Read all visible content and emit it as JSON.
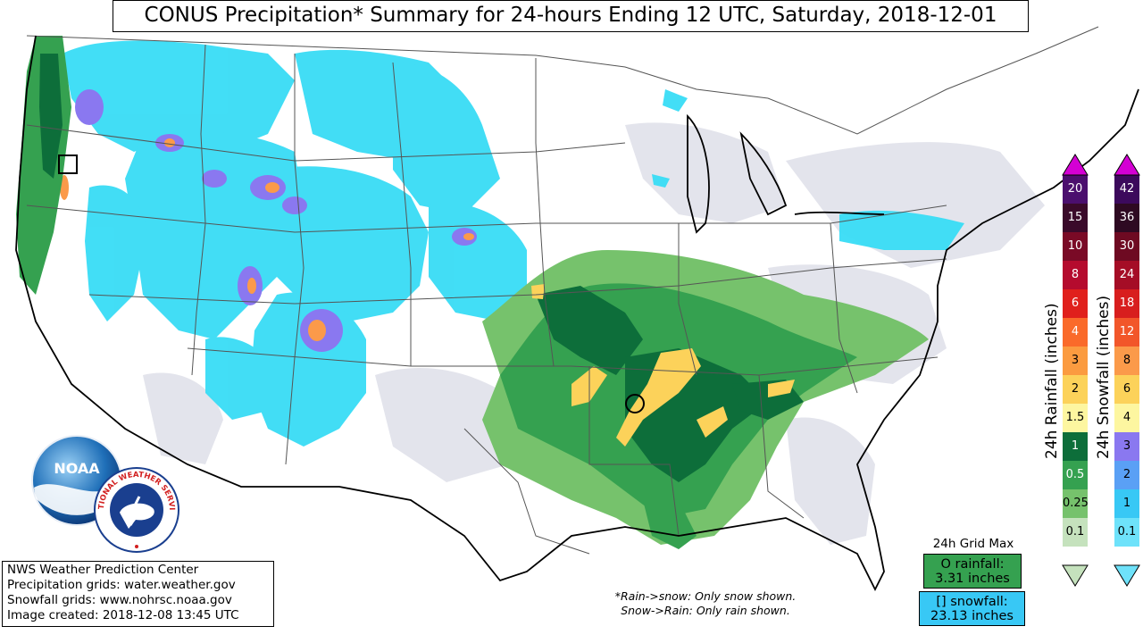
{
  "title": "CONUS Precipitation* Summary for 24-hours Ending 12 UTC, Saturday, 2018-12-01",
  "legend": {
    "rain_label": "24h Rainfall (inches)",
    "snow_label": "24h Snowfall (inches)",
    "rain_bins": [
      {
        "label": "20",
        "color": "#4b0f6e"
      },
      {
        "label": "15",
        "color": "#3a0a2a"
      },
      {
        "label": "10",
        "color": "#7a0a26"
      },
      {
        "label": "8",
        "color": "#b50b2e"
      },
      {
        "label": "6",
        "color": "#e0201c"
      },
      {
        "label": "4",
        "color": "#fa6a2a"
      },
      {
        "label": "3",
        "color": "#fb9b40"
      },
      {
        "label": "2",
        "color": "#fcd25a"
      },
      {
        "label": "1.5",
        "color": "#fdf6a0"
      },
      {
        "label": "1",
        "color": "#0d6e3a"
      },
      {
        "label": "0.5",
        "color": "#35a150"
      },
      {
        "label": "0.25",
        "color": "#76c26c"
      },
      {
        "label": "0.1",
        "color": "#c5e2bd"
      }
    ],
    "snow_bins": [
      {
        "label": "42",
        "color": "#3c0a5c"
      },
      {
        "label": "36",
        "color": "#2e0a22"
      },
      {
        "label": "30",
        "color": "#6e0a22"
      },
      {
        "label": "24",
        "color": "#a50d26"
      },
      {
        "label": "18",
        "color": "#d81e1e"
      },
      {
        "label": "12",
        "color": "#f2562a"
      },
      {
        "label": "8",
        "color": "#fb9a4a"
      },
      {
        "label": "6",
        "color": "#fcd25a"
      },
      {
        "label": "4",
        "color": "#fdf6a0"
      },
      {
        "label": "3",
        "color": "#8a78f0"
      },
      {
        "label": "2",
        "color": "#5aa0f5"
      },
      {
        "label": "1",
        "color": "#38c8f5"
      },
      {
        "label": "0.1",
        "color": "#6ee2fa"
      }
    ],
    "arrow_color": "#d400d4"
  },
  "grid_max": {
    "title": "24h Grid Max",
    "rain_line1": "O rainfall:",
    "rain_line2": "3.31 inches",
    "rain_color": "#35a150",
    "snow_line1": "[] snowfall:",
    "snow_line2": "23.13 inches",
    "snow_color": "#38c8f5"
  },
  "credits": {
    "line1": "NWS Weather Prediction Center",
    "line2": "Precipitation grids: water.weather.gov",
    "line3": "Snowfall grids: www.nohrsc.noaa.gov",
    "line4": "Image created: 2018-12-08 13:45 UTC"
  },
  "note": {
    "line1": "*Rain->snow: Only snow shown.",
    "line2": "Snow->Rain: Only rain shown."
  },
  "logos": {
    "noaa": "NOAA",
    "nws": "NATIONAL WEATHER SERVICE"
  }
}
